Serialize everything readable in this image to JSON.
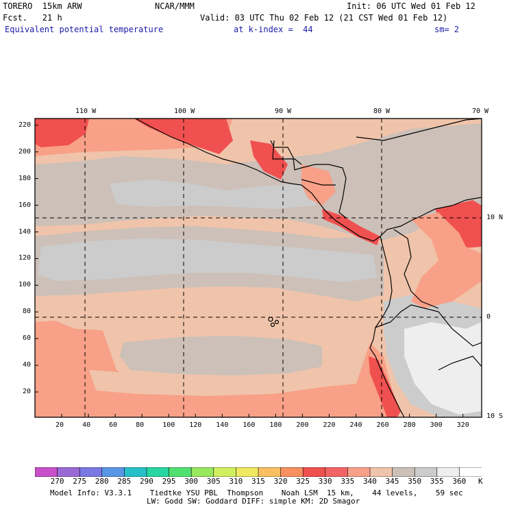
{
  "header": {
    "model": "TORERO  15km ARW",
    "org": "NCAR/MMM",
    "init": "Init: 06 UTC Wed 01 Feb 12",
    "forecast": "Fcst.   21 h",
    "valid": "Valid: 03 UTC Thu 02 Feb 12 (21 CST Wed 01 Feb 12)",
    "field": "Equivalent potential temperature",
    "level": "at k-index =  44",
    "smoothing": "sm= 2"
  },
  "map": {
    "top_lon_labels": [
      "110 W",
      "100 W",
      "90 W",
      "80 W",
      "70 W"
    ],
    "right_lat_labels": [
      "10 N",
      "0",
      "10 S"
    ],
    "y_ticks": [
      "220",
      "200",
      "180",
      "160",
      "140",
      "120",
      "100",
      "80",
      "60",
      "40",
      "20"
    ],
    "x_ticks": [
      "20",
      "40",
      "60",
      "80",
      "100",
      "120",
      "140",
      "160",
      "180",
      "200",
      "220",
      "240",
      "260",
      "280",
      "300",
      "320"
    ]
  },
  "colorbar": {
    "unit": "K",
    "labels": [
      "270",
      "275",
      "280",
      "285",
      "290",
      "295",
      "300",
      "305",
      "310",
      "315",
      "320",
      "325",
      "330",
      "335",
      "340",
      "345",
      "350",
      "355",
      "360"
    ],
    "colors": [
      "#c850c8",
      "#9a6ad4",
      "#7a78e4",
      "#5a96e6",
      "#28c0c8",
      "#28d6a0",
      "#50e070",
      "#98e860",
      "#d0f060",
      "#f0e860",
      "#f8c060",
      "#f89060",
      "#f05050",
      "#f06464",
      "#f8a088",
      "#f0c4aa",
      "#ccc0b8",
      "#cccccc",
      "#eeeeee",
      "#ffffff"
    ]
  },
  "footer": {
    "line1": "Model Info: V3.3.1    Tiedtke YSU PBL  Thompson    Noah LSM  15 km,    44 levels,    59 sec",
    "line2": "LW: Godd SW: Goddard DIFF: simple KM: 2D Smagor"
  }
}
